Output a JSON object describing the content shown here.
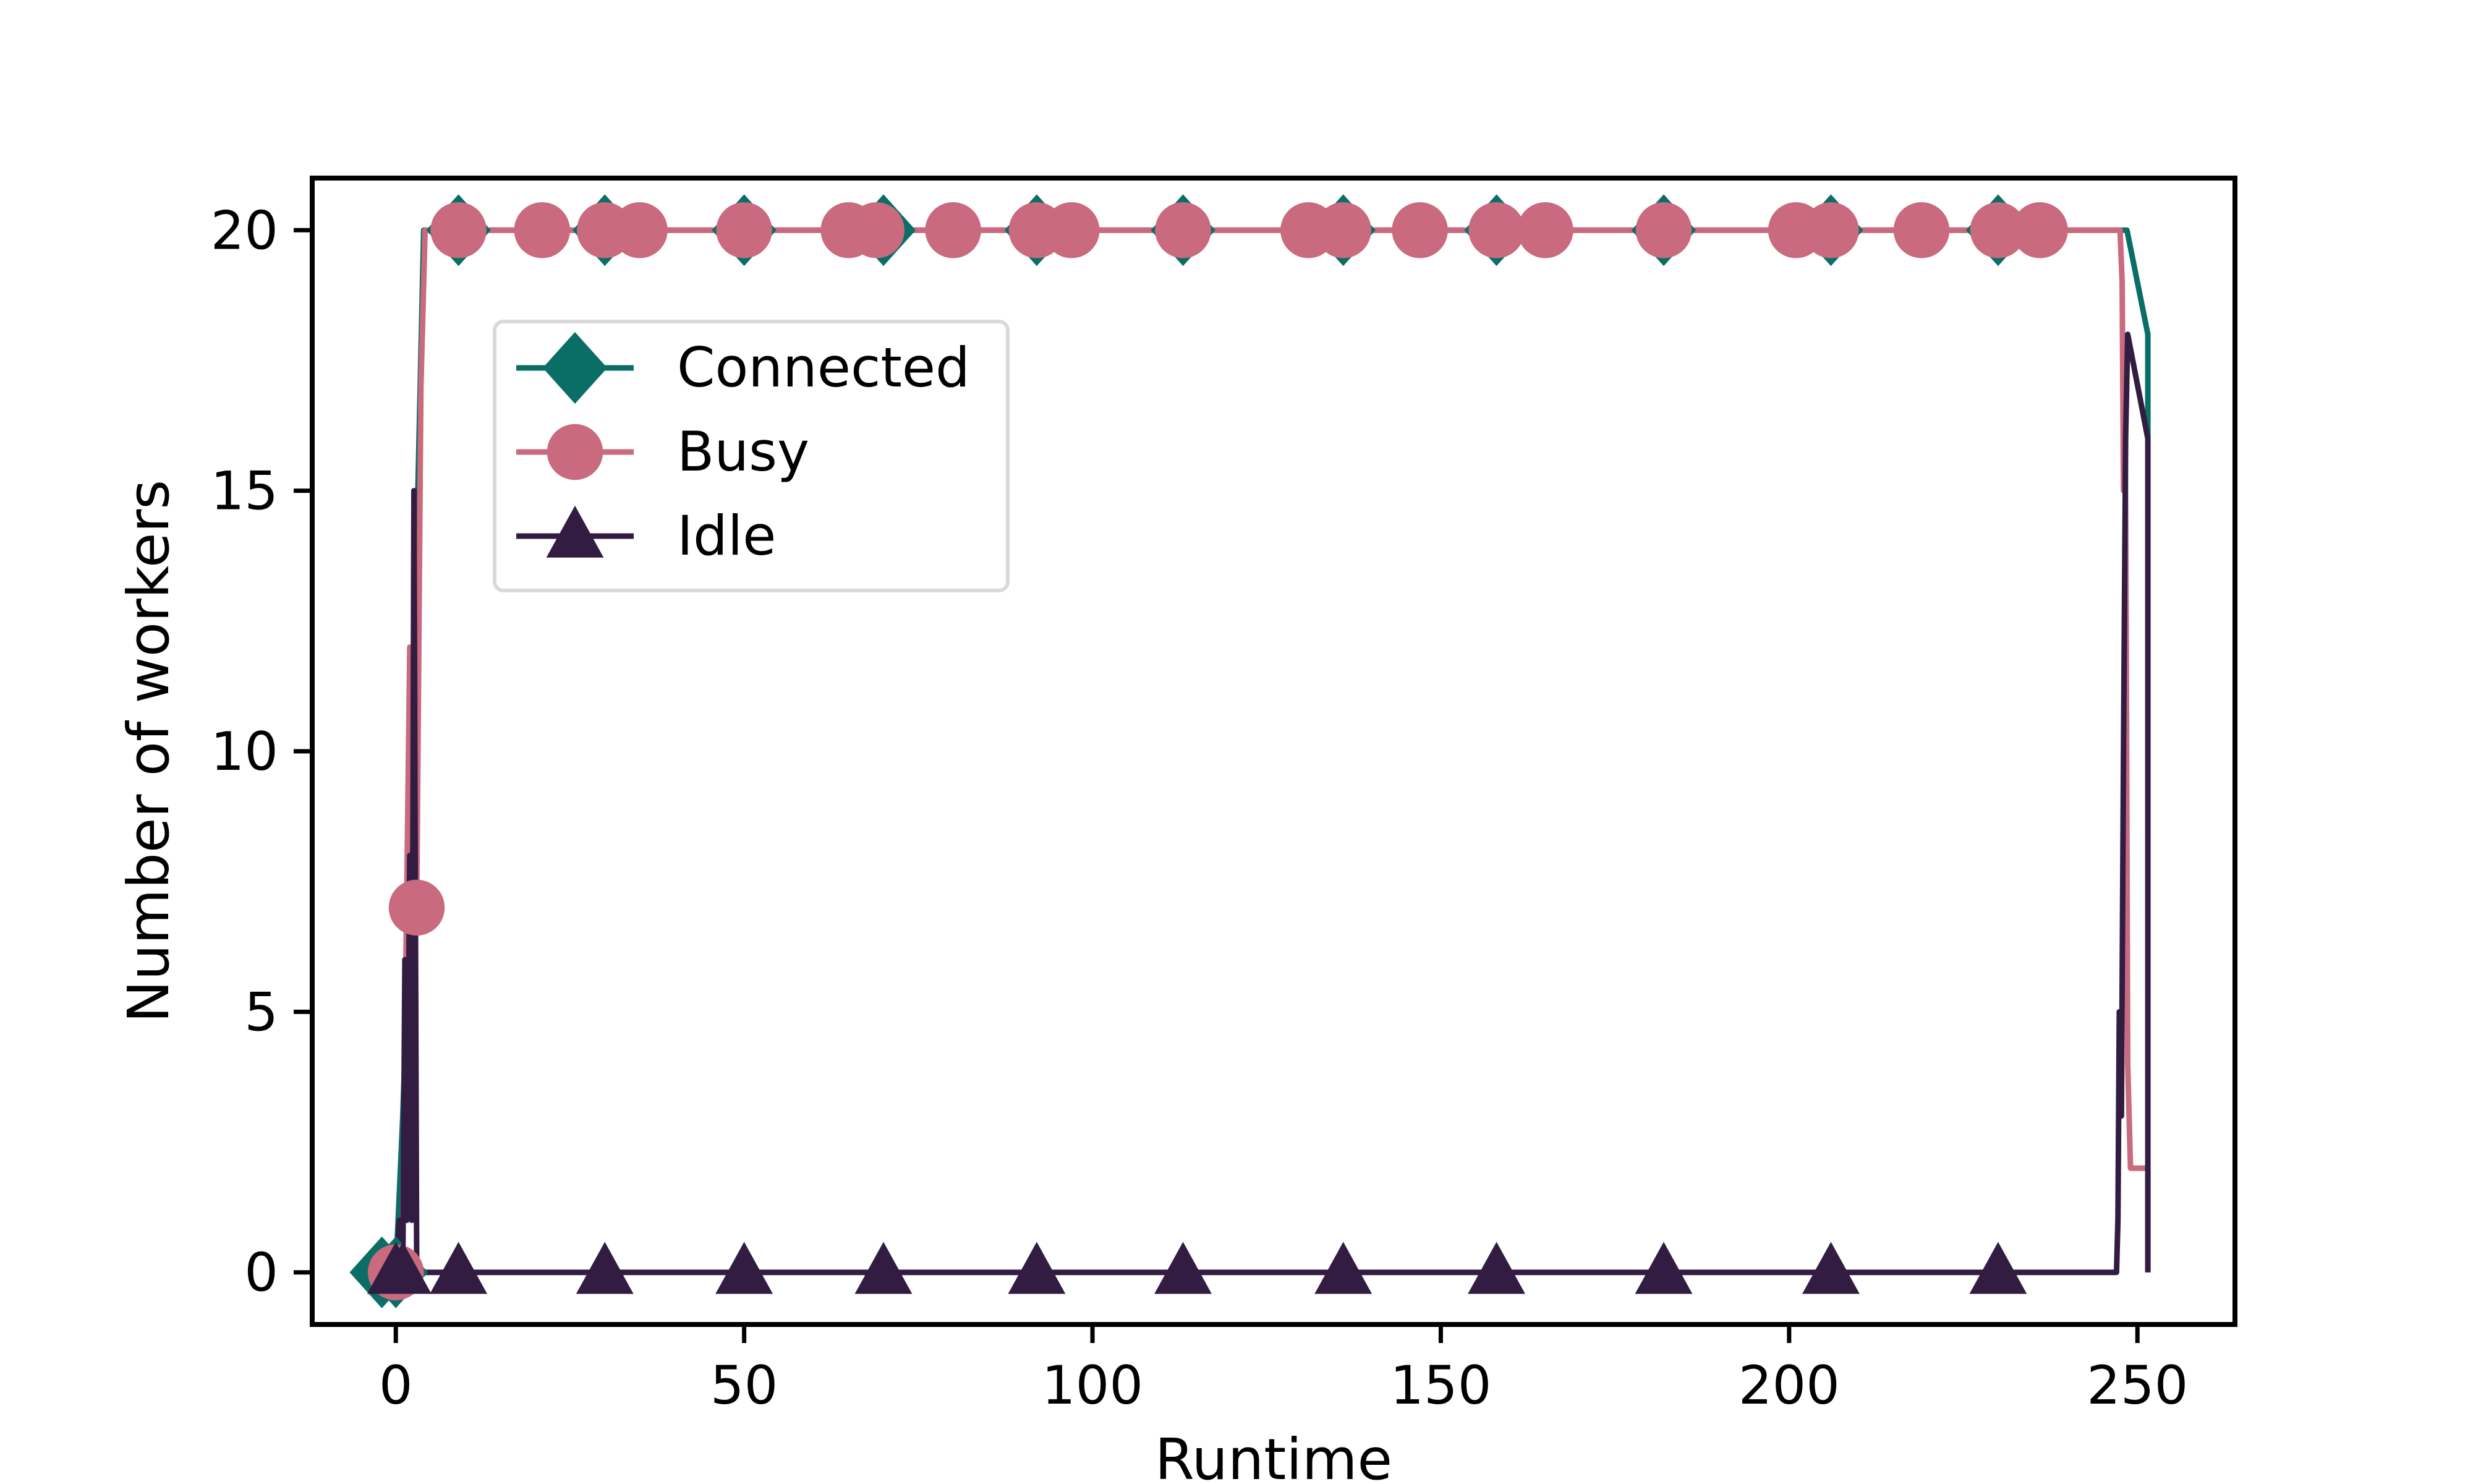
{
  "chart_data": {
    "type": "line",
    "title": "",
    "xlabel": "Runtime",
    "ylabel": "Number of workers",
    "xlim": [
      -12,
      264
    ],
    "ylim": [
      -1,
      21
    ],
    "xticks": [
      0,
      50,
      100,
      150,
      200,
      250
    ],
    "yticks": [
      0,
      5,
      10,
      15,
      20
    ],
    "grid": false,
    "legend": {
      "position": "upper-left"
    },
    "series": [
      {
        "name": "Connected",
        "color": "#0a6e66",
        "marker": "diamond",
        "points": [
          [
            0,
            0
          ],
          [
            1,
            3
          ],
          [
            2,
            7
          ],
          [
            3,
            14
          ],
          [
            4,
            20
          ],
          [
            248.5,
            20
          ],
          [
            251.5,
            18
          ],
          [
            251.5,
            16
          ]
        ],
        "marker_x": [
          -2,
          0,
          9,
          30,
          50,
          70,
          92,
          113,
          136,
          158,
          182,
          206,
          230
        ]
      },
      {
        "name": "Busy",
        "color": "#c96a7e",
        "marker": "circle",
        "points": [
          [
            0,
            0
          ],
          [
            1,
            1
          ],
          [
            2,
            12
          ],
          [
            3,
            7
          ],
          [
            3.6,
            17
          ],
          [
            4,
            19
          ],
          [
            4.2,
            20
          ],
          [
            247.5,
            20
          ],
          [
            247.8,
            19
          ],
          [
            248,
            15
          ],
          [
            248.2,
            17
          ],
          [
            248.4,
            12
          ],
          [
            248.6,
            4
          ],
          [
            249,
            2
          ],
          [
            251.5,
            2
          ],
          [
            251.5,
            0
          ]
        ],
        "marker_x": [
          0,
          3,
          9,
          21,
          30,
          35,
          50,
          65,
          69,
          80,
          92,
          97,
          113,
          131,
          136,
          147,
          158,
          165,
          182,
          201,
          206,
          219,
          230,
          236
        ]
      },
      {
        "name": "Idle",
        "color": "#321c42",
        "marker": "triangle",
        "points": [
          [
            0,
            0
          ],
          [
            0.5,
            1
          ],
          [
            1,
            0
          ],
          [
            1.3,
            6
          ],
          [
            1.6,
            1
          ],
          [
            2,
            8
          ],
          [
            2.3,
            1
          ],
          [
            2.6,
            15
          ],
          [
            3,
            0
          ],
          [
            247,
            0
          ],
          [
            247.2,
            1
          ],
          [
            247.4,
            5
          ],
          [
            247.7,
            3
          ],
          [
            248,
            10
          ],
          [
            248.3,
            16
          ],
          [
            248.6,
            18
          ],
          [
            251.5,
            16
          ],
          [
            251.5,
            0
          ]
        ],
        "marker_x": [
          0,
          1,
          9,
          30,
          50,
          70,
          92,
          113,
          136,
          158,
          182,
          206,
          230
        ]
      }
    ]
  }
}
